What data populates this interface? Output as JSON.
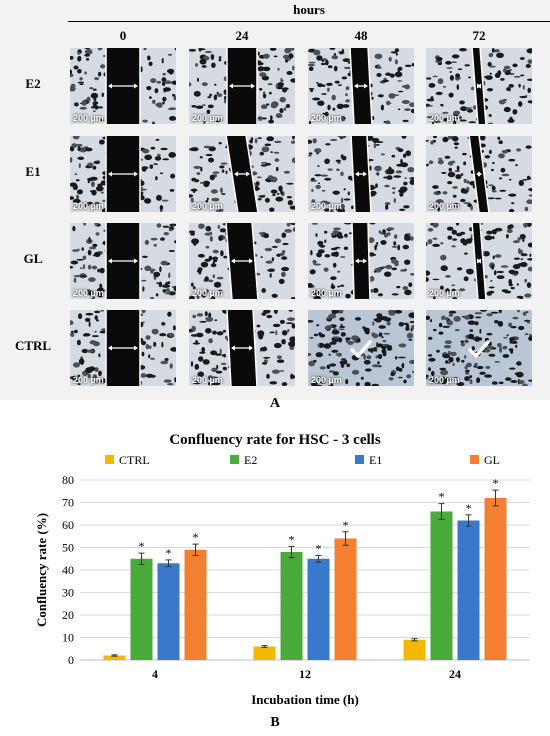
{
  "panel_a": {
    "header": "hours",
    "timepoints": [
      "0",
      "24",
      "48",
      "72"
    ],
    "rows": [
      "E2",
      "E1",
      "GL",
      "CTRL"
    ],
    "scale_bar": "200 µm",
    "panel_label": "A"
  },
  "panel_b_label": "B",
  "chart_data": {
    "type": "bar",
    "title": "Confluency rate for HSC - 3 cells",
    "xlabel": "Incubation time (h)",
    "ylabel": "Confluency rate (%)",
    "categories": [
      "4",
      "12",
      "24"
    ],
    "ylim": [
      0,
      80
    ],
    "yticks": [
      "0",
      "10",
      "20",
      "30",
      "40",
      "50",
      "60",
      "70",
      "80"
    ],
    "grid": true,
    "legend_position": "top",
    "significance_marker": "*",
    "series": [
      {
        "name": "CTRL",
        "color": "#f5b800",
        "values": [
          2,
          6,
          9
        ],
        "errors": [
          0.3,
          0.4,
          0.5
        ],
        "significant": [
          false,
          false,
          false
        ]
      },
      {
        "name": "E2",
        "color": "#4aab3c",
        "values": [
          45,
          48,
          66
        ],
        "errors": [
          2.5,
          2.5,
          3.5
        ],
        "significant": [
          true,
          true,
          true
        ]
      },
      {
        "name": "E1",
        "color": "#3a78c9",
        "values": [
          43,
          45,
          62
        ],
        "errors": [
          1.5,
          1.5,
          2.5
        ],
        "significant": [
          true,
          true,
          true
        ]
      },
      {
        "name": "GL",
        "color": "#f28030",
        "values": [
          49,
          54,
          72
        ],
        "errors": [
          2.5,
          3,
          3.5
        ],
        "significant": [
          true,
          true,
          true
        ]
      }
    ]
  }
}
